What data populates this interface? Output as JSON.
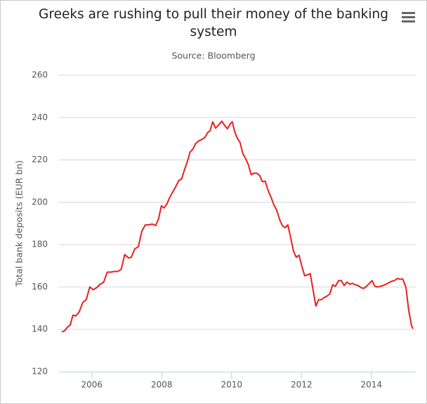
{
  "chart_data": {
    "type": "line",
    "title": "Greeks are rushing to pull their money of the banking system",
    "subtitle": "Source: Bloomberg",
    "y_label": "Total bank deposits (EUR bn)",
    "color": "#e8201f",
    "grid": true,
    "xlim": [
      2005.06,
      2015.27
    ],
    "xticks": [
      2006,
      2008,
      2010,
      2012,
      2014
    ],
    "ylim": [
      120,
      260
    ],
    "yticks": [
      120,
      140,
      160,
      180,
      200,
      220,
      240,
      260
    ],
    "x": [
      2005.14,
      2005.22,
      2005.3,
      2005.38,
      2005.46,
      2005.54,
      2005.64,
      2005.74,
      2005.84,
      2005.94,
      2006.04,
      2006.14,
      2006.24,
      2006.34,
      2006.44,
      2006.54,
      2006.64,
      2006.74,
      2006.84,
      2006.94,
      2007.05,
      2007.13,
      2007.23,
      2007.33,
      2007.43,
      2007.53,
      2007.63,
      2007.73,
      2007.83,
      2007.91,
      2007.99,
      2008.07,
      2008.15,
      2008.23,
      2008.31,
      2008.39,
      2008.49,
      2008.57,
      2008.65,
      2008.73,
      2008.81,
      2008.89,
      2008.97,
      2009.06,
      2009.16,
      2009.24,
      2009.32,
      2009.38,
      2009.46,
      2009.54,
      2009.62,
      2009.72,
      2009.8,
      2009.88,
      2009.96,
      2010.02,
      2010.08,
      2010.16,
      2010.24,
      2010.32,
      2010.4,
      2010.48,
      2010.56,
      2010.64,
      2010.72,
      2010.8,
      2010.88,
      2010.96,
      2011.05,
      2011.13,
      2011.21,
      2011.29,
      2011.37,
      2011.45,
      2011.53,
      2011.61,
      2011.69,
      2011.77,
      2011.85,
      2011.93,
      2012.01,
      2012.09,
      2012.17,
      2012.25,
      2012.33,
      2012.41,
      2012.49,
      2012.57,
      2012.65,
      2012.73,
      2012.81,
      2012.89,
      2012.97,
      2013.06,
      2013.14,
      2013.22,
      2013.3,
      2013.38,
      2013.46,
      2013.54,
      2013.62,
      2013.7,
      2013.78,
      2013.86,
      2013.94,
      2014.02,
      2014.1,
      2014.18,
      2014.26,
      2014.34,
      2014.42,
      2014.5,
      2014.58,
      2014.66,
      2014.74,
      2014.82,
      2014.9,
      2014.99,
      2015.07,
      2015.15,
      2015.19
    ],
    "values": [
      138.7,
      139.3,
      141,
      142,
      146.7,
      146.3,
      148.3,
      152.7,
      154,
      160,
      158.7,
      159.7,
      161.3,
      162.3,
      167,
      167,
      167.3,
      167.3,
      168.3,
      175.3,
      173.7,
      174,
      178,
      179,
      186.3,
      189.3,
      189.3,
      189.7,
      189,
      192.3,
      198.3,
      197.3,
      199.3,
      202.3,
      204.7,
      207,
      210.3,
      211,
      215.3,
      219,
      223.7,
      225,
      227.7,
      229,
      229.7,
      230.7,
      233,
      233.7,
      238,
      235,
      236.3,
      238.3,
      236.3,
      234.7,
      237,
      238,
      233.7,
      230.3,
      228.3,
      223,
      220.7,
      217.7,
      213,
      213.7,
      213.7,
      212.7,
      209.7,
      210,
      205.3,
      202.3,
      198.7,
      196.3,
      192,
      189,
      188,
      189.3,
      183.3,
      177,
      174,
      175,
      169.7,
      165.3,
      165.7,
      166.3,
      158.7,
      151,
      154,
      154,
      155,
      155.7,
      156.7,
      161,
      160.3,
      163,
      163,
      160.7,
      162.3,
      161.3,
      161.7,
      161,
      160.7,
      159.7,
      159.3,
      160.3,
      161.7,
      163,
      160.3,
      160,
      160.3,
      160.7,
      161.3,
      162,
      162.7,
      163,
      164,
      163.7,
      163.7,
      159.7,
      148.7,
      141.7,
      140.3
    ]
  }
}
